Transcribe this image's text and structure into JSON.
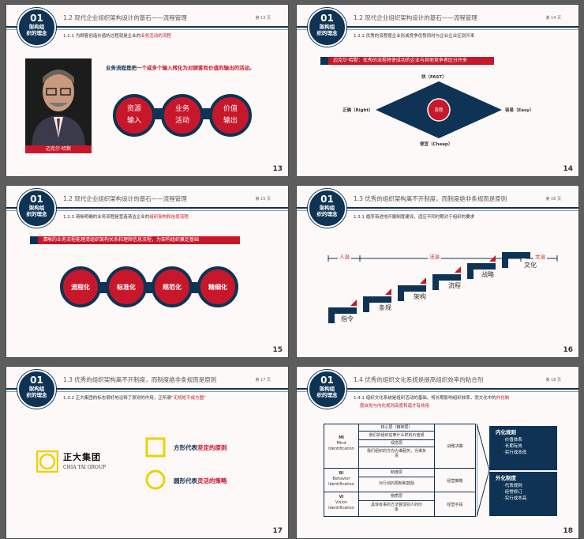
{
  "badge": {
    "num": "01",
    "line1": "架构组",
    "line2": "织的理念"
  },
  "section_title": "1.2 现代企业组织架构设计的基石——流程管理",
  "page_numbers": {
    "s13": "第 13 页",
    "s14": "第 14 页",
    "s15": "第 15 页",
    "s16": "第 16 页",
    "s17": "第 17 页",
    "s18": "第 18 页"
  },
  "slide_numbers": {
    "s13": "13",
    "s14": "14",
    "s15": "15",
    "s16": "16",
    "s17": "17",
    "s18": "18"
  },
  "s13": {
    "sub_a": "1.2.1 为顾客创造价值的过程就是企业的",
    "sub_b": "业务活动的流程",
    "caption": "迈克尔·哈默",
    "quote_a": "业务流程是把",
    "quote_b": "一个或多个输入转化为对顾客有价值的输出的活动。",
    "circles": [
      [
        "资源",
        "输入"
      ],
      [
        "业务",
        "活动"
      ],
      [
        "价值",
        "输出"
      ]
    ]
  },
  "s14": {
    "sub": "1.2.2 优秀的流程使企业形成竞争优势同时与企业企业区别开来",
    "bar": "迈克尔·哈默：优秀的流程将使成功的企业与其他竞争者区分开来",
    "top": "快（FAST）",
    "bottom": "便宜（Cheap）",
    "left": "正确（Right）",
    "right": "容易（Easy）",
    "center": "流程"
  },
  "s15": {
    "sub_a": "1.2.3 清晰明确的业务流程是营造清洁企业的",
    "sub_b": "组织架构和信息流程",
    "bar": "清晰的业务流程能理清组织架构关系和理顺信息流程，为架构组织奠定基础",
    "circles": [
      "流程化",
      "标准化",
      "规范化",
      "精细化"
    ]
  },
  "s16": {
    "title": "1.3 优秀的组织架构离不开制度，而制度绝非条规而是原则",
    "sub": "1.3.1 循序渐进地开展制度建设，适应不同时期对于组织的要求",
    "top_labels": [
      "人治",
      "法治",
      "文治"
    ],
    "steps": [
      "指令",
      "条规",
      "架构",
      "流程",
      "战略",
      "文化"
    ]
  },
  "s17": {
    "title": "1.3 优秀的组织架构离不开制度，而制度绝非条规而是原则",
    "sub_a": "1.3.2 正大集团的标志很好地诠释了原则的作用，正所谓",
    "sub_b": "“无规矩不成方圆”",
    "logo_cn": "正大集团",
    "logo_en": "CHIA TAI GROUP",
    "square_a": "方形代表",
    "square_b": "坚定的原则",
    "circle_a": "圆形代表",
    "circle_b": "灵活的策略"
  },
  "s18": {
    "title": "1.4 优秀的组织文化系统是提高组织效率的粘合剂",
    "sub1_a": "1.4.1 组织文化系统是组织活动的基础，将长期影响组织效率，而文化中的",
    "sub1_b": "外化制",
    "sub2": "度自觉与内化规则高度和谐才有效用",
    "rows": [
      {
        "code": "MI",
        "name1": "Mind",
        "name2": "Identification",
        "cells": [
          "核心层（精神层）",
          "我们的组织信奉什么样的价值观",
          "观念层",
          "我们组织的方向为谁服务，为谁负责"
        ],
        "side": "战略决策"
      },
      {
        "code": "BI",
        "name1": "Behavior",
        "name2": "Identification",
        "cells": [
          "制度层",
          "对行动的限制和鼓励"
        ],
        "side": "经营策略"
      },
      {
        "code": "VI",
        "name1": "Vision",
        "name2": "Identification",
        "cells": [
          "物质层",
          "具体有事的方法督促别人的印象"
        ],
        "side": "经营手段"
      }
    ],
    "box1_title": "内化规则",
    "box1_items": [
      "·价值体系",
      "·长期有效",
      "·实行成本低"
    ],
    "box2_title": "外化制度",
    "box2_items": [
      "·代表规则",
      "·经常修订",
      "·实行成本高"
    ]
  },
  "colors": {
    "navy": "#0f3354",
    "red": "#c8172b"
  }
}
